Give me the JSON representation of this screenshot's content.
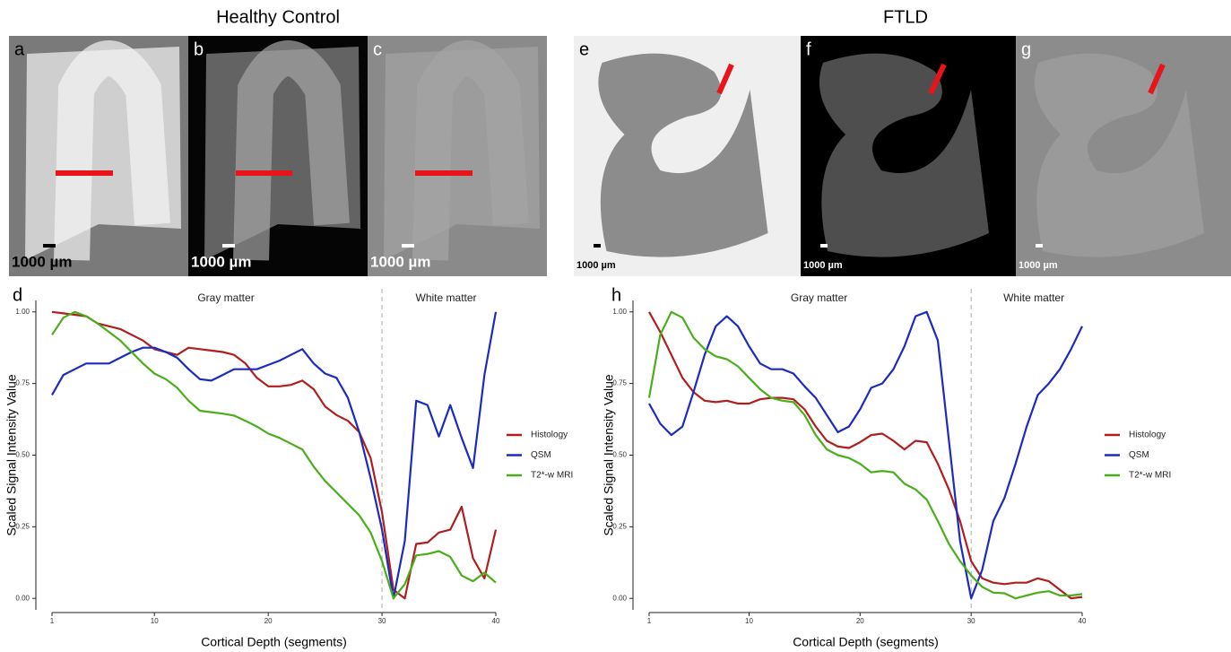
{
  "figure": {
    "titles": [
      "Healthy Control",
      "FTLD"
    ],
    "panels": [
      {
        "label": "a",
        "scale_bar": "1000 µm"
      },
      {
        "label": "b",
        "scale_bar": "1000 µm"
      },
      {
        "label": "c",
        "scale_bar": "1000 µm"
      },
      {
        "label": "e",
        "scale_bar": "1000 µm"
      },
      {
        "label": "f",
        "scale_bar": "1000 µm"
      },
      {
        "label": "g",
        "scale_bar": "1000 µm"
      }
    ]
  },
  "chart_data": [
    {
      "type": "line",
      "panel_label": "d",
      "x_label": "Cortical Depth (segments)",
      "y_label": "Scaled Signal Intensity Value",
      "annotations": [
        "Gray matter",
        "White matter"
      ],
      "vline": 30,
      "xlim": [
        1,
        40
      ],
      "xticks": [
        1,
        10,
        20,
        30,
        40
      ],
      "ylim": [
        -0.04,
        1.04
      ],
      "yticks": [
        {
          "value": 0,
          "label": "0.00"
        },
        {
          "value": 0.25,
          "label": "0.25"
        },
        {
          "value": 0.5,
          "label": "0.50"
        },
        {
          "value": 0.75,
          "label": "0.75"
        },
        {
          "value": 1,
          "label": "1.00"
        }
      ],
      "x": [
        1,
        2,
        3,
        4,
        5,
        6,
        7,
        8,
        9,
        10,
        11,
        12,
        13,
        14,
        15,
        16,
        17,
        18,
        19,
        20,
        21,
        22,
        23,
        24,
        25,
        26,
        27,
        28,
        29,
        30,
        31,
        32,
        33,
        34,
        35,
        36,
        37,
        38,
        39,
        40
      ],
      "series": [
        {
          "name": "Histology",
          "color": "#b01e1e",
          "values": [
            1.0,
            0.995,
            0.99,
            0.985,
            0.96,
            0.95,
            0.94,
            0.92,
            0.9,
            0.87,
            0.86,
            0.85,
            0.875,
            0.87,
            0.865,
            0.86,
            0.85,
            0.82,
            0.77,
            0.74,
            0.74,
            0.745,
            0.76,
            0.73,
            0.67,
            0.64,
            0.62,
            0.58,
            0.49,
            0.3,
            0.03,
            0.0,
            0.19,
            0.195,
            0.23,
            0.24,
            0.32,
            0.14,
            0.07,
            0.24
          ]
        },
        {
          "name": "QSM",
          "color": "#1c2bbf",
          "values": [
            0.71,
            0.78,
            0.8,
            0.82,
            0.82,
            0.82,
            0.84,
            0.86,
            0.875,
            0.875,
            0.86,
            0.84,
            0.8,
            0.765,
            0.76,
            0.78,
            0.8,
            0.8,
            0.8,
            0.815,
            0.83,
            0.85,
            0.87,
            0.82,
            0.785,
            0.77,
            0.7,
            0.58,
            0.42,
            0.24,
            0.0,
            0.2,
            0.69,
            0.675,
            0.565,
            0.675,
            0.56,
            0.455,
            0.78,
            1.0
          ]
        },
        {
          "name": "T2*-w MRI",
          "color": "#4aae1a",
          "values": [
            0.92,
            0.98,
            1.0,
            0.985,
            0.96,
            0.93,
            0.9,
            0.86,
            0.82,
            0.785,
            0.765,
            0.735,
            0.69,
            0.655,
            0.65,
            0.645,
            0.638,
            0.62,
            0.6,
            0.575,
            0.56,
            0.54,
            0.52,
            0.46,
            0.41,
            0.37,
            0.33,
            0.29,
            0.23,
            0.13,
            0.0,
            0.05,
            0.15,
            0.155,
            0.165,
            0.145,
            0.08,
            0.06,
            0.09,
            0.055
          ]
        }
      ]
    },
    {
      "type": "line",
      "panel_label": "h",
      "x_label": "Cortical Depth (segments)",
      "y_label": "Scaled Signal Intensity Value",
      "annotations": [
        "Gray matter",
        "White matter"
      ],
      "vline": 30,
      "xlim": [
        1,
        40
      ],
      "xticks": [
        1,
        10,
        20,
        30,
        40
      ],
      "ylim": [
        -0.04,
        1.04
      ],
      "yticks": [
        {
          "value": 0,
          "label": "0.00"
        },
        {
          "value": 0.25,
          "label": "0.25"
        },
        {
          "value": 0.5,
          "label": "0.50"
        },
        {
          "value": 0.75,
          "label": "0.75"
        },
        {
          "value": 1,
          "label": "1.00"
        }
      ],
      "x": [
        1,
        2,
        3,
        4,
        5,
        6,
        7,
        8,
        9,
        10,
        11,
        12,
        13,
        14,
        15,
        16,
        17,
        18,
        19,
        20,
        21,
        22,
        23,
        24,
        25,
        26,
        27,
        28,
        29,
        30,
        31,
        32,
        33,
        34,
        35,
        36,
        37,
        38,
        39,
        40
      ],
      "series": [
        {
          "name": "Histology",
          "color": "#b01e1e",
          "values": [
            1.0,
            0.93,
            0.85,
            0.77,
            0.72,
            0.69,
            0.685,
            0.69,
            0.68,
            0.68,
            0.695,
            0.7,
            0.7,
            0.695,
            0.66,
            0.6,
            0.55,
            0.53,
            0.525,
            0.545,
            0.57,
            0.575,
            0.55,
            0.52,
            0.55,
            0.545,
            0.47,
            0.38,
            0.27,
            0.13,
            0.07,
            0.055,
            0.05,
            0.055,
            0.055,
            0.07,
            0.06,
            0.03,
            0.0,
            0.005
          ]
        },
        {
          "name": "QSM",
          "color": "#1c2bbf",
          "values": [
            0.68,
            0.61,
            0.57,
            0.6,
            0.72,
            0.85,
            0.95,
            0.985,
            0.95,
            0.88,
            0.82,
            0.8,
            0.8,
            0.785,
            0.74,
            0.7,
            0.64,
            0.58,
            0.6,
            0.66,
            0.735,
            0.75,
            0.8,
            0.88,
            0.985,
            1.0,
            0.9,
            0.55,
            0.2,
            0.0,
            0.1,
            0.27,
            0.35,
            0.47,
            0.6,
            0.71,
            0.75,
            0.8,
            0.87,
            0.95
          ]
        },
        {
          "name": "T2*-w MRI",
          "color": "#4aae1a",
          "values": [
            0.7,
            0.92,
            1.0,
            0.98,
            0.91,
            0.87,
            0.845,
            0.835,
            0.81,
            0.77,
            0.73,
            0.7,
            0.69,
            0.685,
            0.64,
            0.57,
            0.52,
            0.5,
            0.49,
            0.47,
            0.44,
            0.445,
            0.44,
            0.4,
            0.38,
            0.345,
            0.27,
            0.19,
            0.13,
            0.08,
            0.04,
            0.02,
            0.018,
            0.0,
            0.01,
            0.02,
            0.025,
            0.01,
            0.01,
            0.015
          ]
        }
      ]
    }
  ]
}
